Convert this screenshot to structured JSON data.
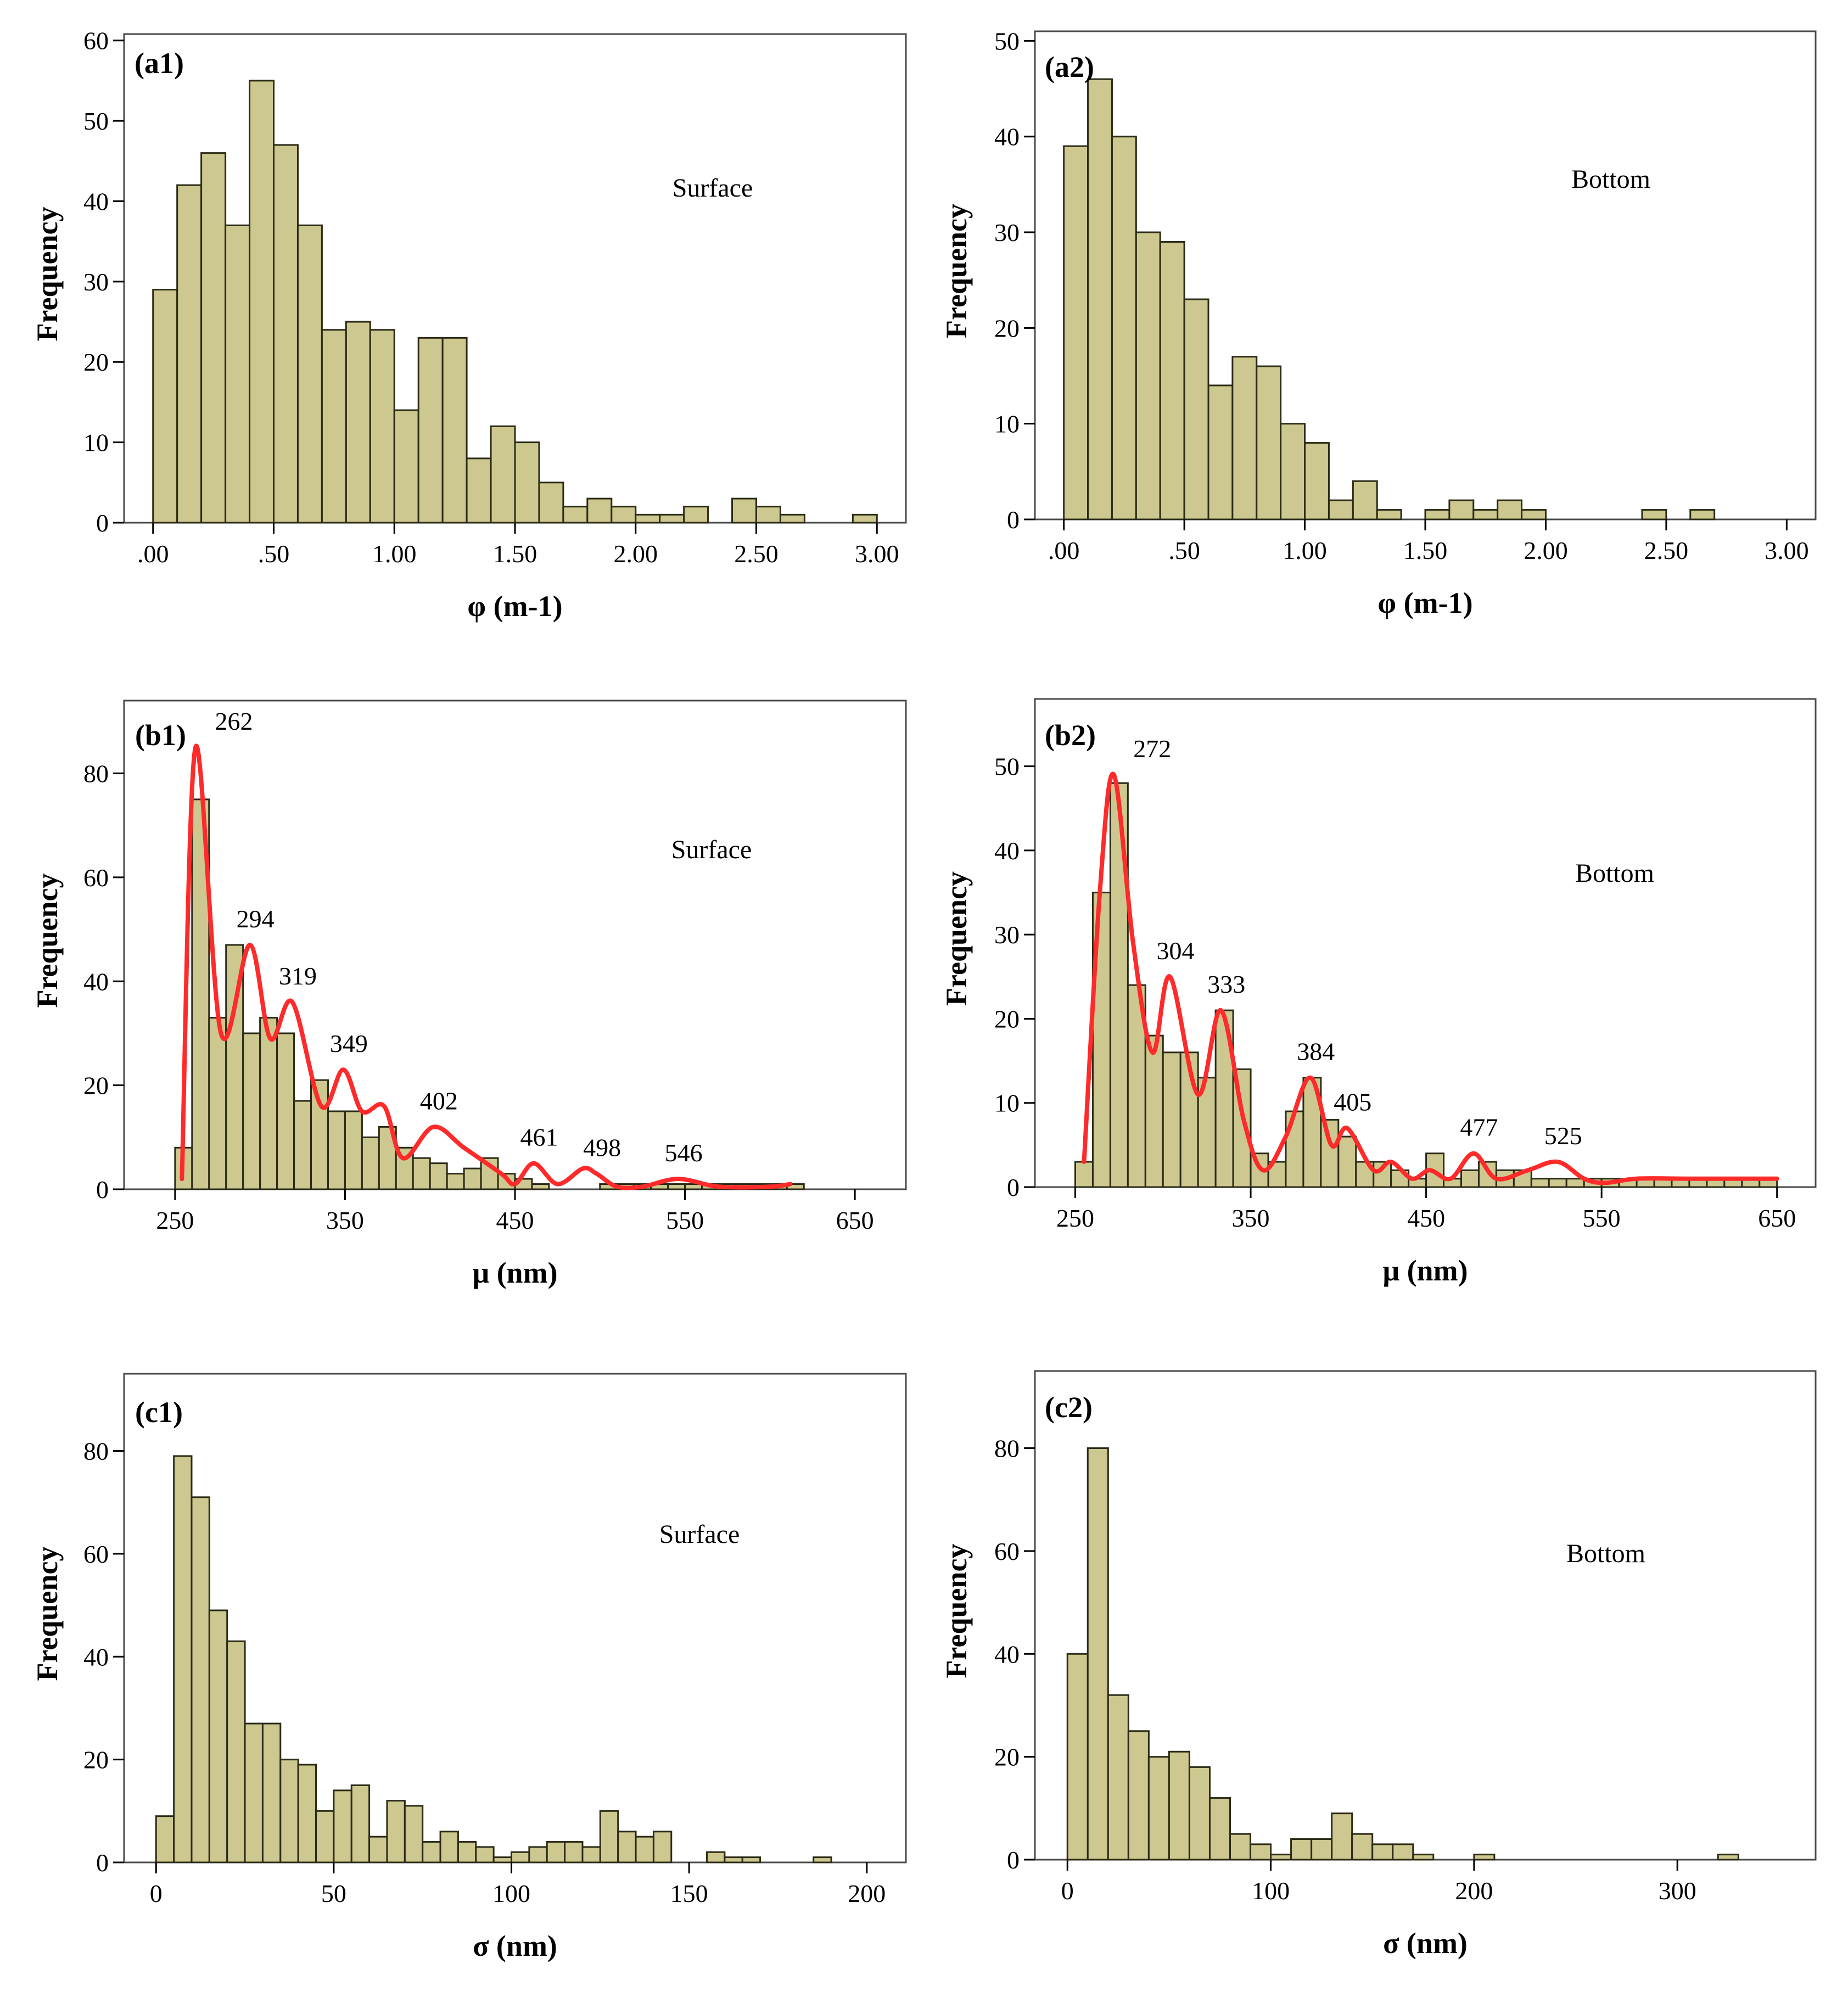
{
  "chart_data": [
    {
      "id": "a1",
      "type": "bar",
      "panel_label": "(a1)",
      "note": "Surface",
      "xlabel": "φ (m-1)",
      "ylabel": "Frequency",
      "xlim": [
        -0.12,
        3.12
      ],
      "ylim": [
        0,
        60.8
      ],
      "xticks": [
        0,
        0.5,
        1,
        1.5,
        2,
        2.5,
        3
      ],
      "xtick_labels": [
        ".00",
        ".50",
        "1.00",
        "1.50",
        "2.00",
        "2.50",
        "3.00"
      ],
      "yticks": [
        0,
        10,
        20,
        30,
        40,
        50,
        60
      ],
      "bin_start": 0.0,
      "bin_width": 0.1,
      "values": [
        29,
        42,
        46,
        37,
        55,
        47,
        37,
        24,
        25,
        24,
        14,
        23,
        23,
        8,
        12,
        10,
        5,
        2,
        3,
        2,
        1,
        1,
        2,
        0,
        3,
        2,
        1,
        0,
        0,
        1
      ]
    },
    {
      "id": "a2",
      "type": "bar",
      "panel_label": "(a2)",
      "note": "Bottom",
      "xlabel": "φ (m-1)",
      "ylabel": "Frequency",
      "xlim": [
        -0.12,
        3.12
      ],
      "ylim": [
        0,
        51
      ],
      "xticks": [
        0,
        0.5,
        1,
        1.5,
        2,
        2.5,
        3
      ],
      "xtick_labels": [
        ".00",
        ".50",
        "1.00",
        "1.50",
        "2.00",
        "2.50",
        "3.00"
      ],
      "yticks": [
        0,
        10,
        20,
        30,
        40,
        50
      ],
      "bin_start": 0.0,
      "bin_width": 0.1,
      "values": [
        39,
        46,
        40,
        30,
        29,
        23,
        14,
        17,
        16,
        10,
        8,
        2,
        4,
        1,
        0,
        1,
        2,
        1,
        2,
        1,
        0,
        0,
        0,
        0,
        1,
        0,
        1
      ]
    },
    {
      "id": "b1",
      "type": "bar",
      "panel_label": "(b1)",
      "note": "Surface",
      "xlabel": "μ (nm)",
      "ylabel": "Frequency",
      "xlim": [
        220,
        680
      ],
      "ylim": [
        0,
        94
      ],
      "xticks": [
        250,
        350,
        450,
        550,
        650
      ],
      "xtick_labels": [
        "250",
        "350",
        "450",
        "550",
        "650"
      ],
      "yticks": [
        0,
        20,
        40,
        60,
        80
      ],
      "bin_start": 250,
      "bin_width": 10,
      "values": [
        8,
        75,
        33,
        47,
        30,
        33,
        30,
        17,
        21,
        15,
        15,
        10,
        12,
        8,
        6,
        5,
        3,
        4,
        6,
        3,
        2,
        1,
        0,
        0,
        0,
        1,
        1,
        1,
        1,
        1,
        1,
        1,
        1,
        1,
        1,
        1,
        1
      ],
      "curve": [
        [
          254,
          2
        ],
        [
          262,
          85
        ],
        [
          277,
          30
        ],
        [
          294,
          47
        ],
        [
          306,
          29
        ],
        [
          319,
          36
        ],
        [
          336,
          16
        ],
        [
          349,
          23
        ],
        [
          360,
          15
        ],
        [
          373,
          16
        ],
        [
          384,
          6
        ],
        [
          402,
          12
        ],
        [
          420,
          8
        ],
        [
          442,
          3
        ],
        [
          450,
          1
        ],
        [
          461,
          5
        ],
        [
          475,
          1
        ],
        [
          490,
          4
        ],
        [
          498,
          3
        ],
        [
          510,
          0.5
        ],
        [
          525,
          0.5
        ],
        [
          546,
          2
        ],
        [
          570,
          0.5
        ],
        [
          600,
          0.5
        ],
        [
          612,
          1
        ]
      ],
      "curve_gap": [
        505,
        520
      ],
      "peaks": [
        262,
        294,
        319,
        349,
        402,
        461,
        498,
        546
      ],
      "peak_labels": [
        "262",
        "294",
        "319",
        "349",
        "402",
        "461",
        "498",
        "546"
      ]
    },
    {
      "id": "b2",
      "type": "bar",
      "panel_label": "(b2)",
      "note": "Bottom",
      "xlabel": "μ (nm)",
      "ylabel": "Frequency",
      "xlim": [
        227,
        672
      ],
      "ylim": [
        0,
        58
      ],
      "xticks": [
        250,
        350,
        450,
        550,
        650
      ],
      "xtick_labels": [
        "250",
        "350",
        "450",
        "550",
        "650"
      ],
      "yticks": [
        0,
        10,
        20,
        30,
        40,
        50
      ],
      "bin_start": 250,
      "bin_width": 10,
      "values": [
        3,
        35,
        48,
        24,
        18,
        16,
        16,
        13,
        21,
        14,
        4,
        3,
        9,
        13,
        8,
        6,
        3,
        3,
        2,
        1,
        4,
        1,
        2,
        3,
        2,
        2,
        1,
        1,
        1,
        1,
        1,
        1,
        1,
        1,
        1,
        1,
        1,
        1,
        1,
        1
      ],
      "curve": [
        [
          255,
          3
        ],
        [
          264,
          35
        ],
        [
          272,
          49
        ],
        [
          283,
          29
        ],
        [
          294,
          16
        ],
        [
          304,
          25
        ],
        [
          320,
          11
        ],
        [
          333,
          21
        ],
        [
          346,
          8
        ],
        [
          357,
          2
        ],
        [
          370,
          6
        ],
        [
          384,
          13
        ],
        [
          396,
          5
        ],
        [
          405,
          7
        ],
        [
          420,
          2
        ],
        [
          430,
          3
        ],
        [
          442,
          1
        ],
        [
          452,
          2
        ],
        [
          464,
          1
        ],
        [
          477,
          4
        ],
        [
          490,
          1
        ],
        [
          508,
          2
        ],
        [
          525,
          3
        ],
        [
          540,
          1
        ],
        [
          552,
          0.5
        ],
        [
          570,
          1
        ],
        [
          600,
          1
        ],
        [
          650,
          1
        ]
      ],
      "peaks": [
        272,
        304,
        333,
        384,
        405,
        477,
        525
      ],
      "peak_labels": [
        "272",
        "304",
        "333",
        "384",
        "405",
        "477",
        "525"
      ]
    },
    {
      "id": "c1",
      "type": "bar",
      "panel_label": "(c1)",
      "note": "Surface",
      "xlabel": "σ (nm)",
      "ylabel": "Frequency",
      "xlim": [
        -9,
        211
      ],
      "ylim": [
        0,
        95
      ],
      "xticks": [
        0,
        50,
        100,
        150,
        200
      ],
      "xtick_labels": [
        "0",
        "50",
        "100",
        "150",
        "200"
      ],
      "yticks": [
        0,
        20,
        40,
        60,
        80
      ],
      "bin_start": 0,
      "bin_width": 5,
      "values": [
        9,
        79,
        71,
        49,
        43,
        27,
        27,
        20,
        19,
        10,
        14,
        15,
        5,
        12,
        11,
        4,
        6,
        4,
        3,
        1,
        2,
        3,
        4,
        4,
        3,
        10,
        6,
        5,
        6,
        0,
        0,
        2,
        1,
        1,
        0,
        0,
        0,
        1
      ]
    },
    {
      "id": "c2",
      "type": "bar",
      "panel_label": "(c2)",
      "note": "Bottom",
      "xlabel": "σ (nm)",
      "ylabel": "Frequency",
      "xlim": [
        -16,
        368
      ],
      "ylim": [
        0,
        95
      ],
      "xticks": [
        0,
        100,
        200,
        300
      ],
      "xtick_labels": [
        "0",
        "100",
        "200",
        "300"
      ],
      "yticks": [
        0,
        20,
        40,
        60,
        80
      ],
      "bin_start": 0,
      "bin_width": 10,
      "values": [
        40,
        80,
        32,
        25,
        20,
        21,
        18,
        12,
        5,
        3,
        1,
        4,
        4,
        9,
        5,
        3,
        3,
        1,
        0,
        0,
        1,
        0,
        0,
        0,
        0,
        0,
        0,
        0,
        0,
        0,
        0,
        0,
        1
      ]
    }
  ]
}
